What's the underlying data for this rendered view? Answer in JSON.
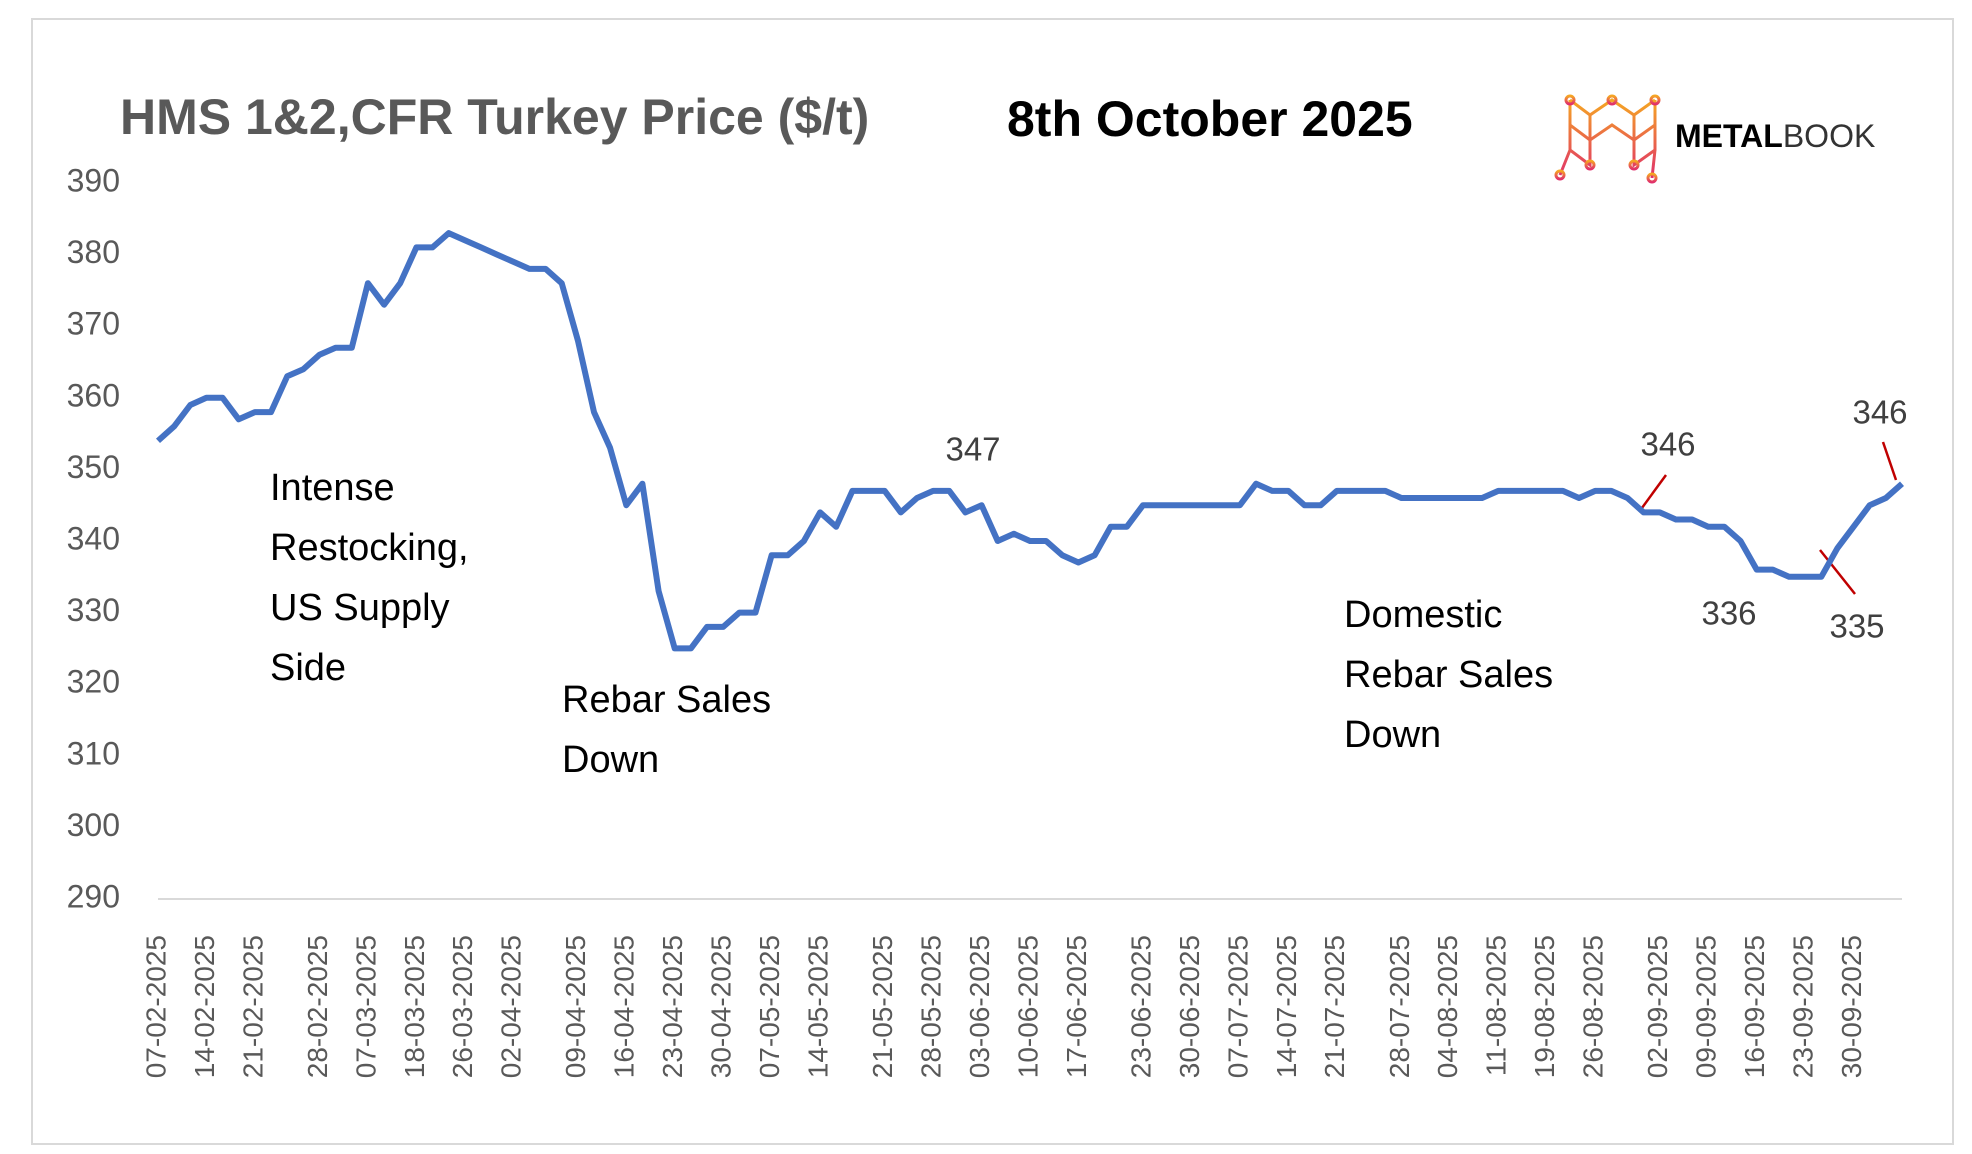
{
  "chart_data": {
    "type": "line",
    "title": "HMS 1&2,CFR Turkey Price ($/t)",
    "subtitle": "8th October 2025",
    "logo_bold": "METAL",
    "logo_light": "BOOK",
    "annotations": [
      [
        "Intense",
        "Restocking,",
        "US Supply",
        "Side"
      ],
      [
        "Rebar Sales",
        "Down"
      ],
      [
        "Domestic",
        "Rebar Sales",
        "Down"
      ]
    ],
    "categories": [
      "07-02-2025",
      null,
      null,
      "14-02-2025",
      null,
      null,
      "21-02-2025",
      null,
      null,
      null,
      "28-02-2025",
      null,
      null,
      "07-03-2025",
      null,
      null,
      "18-03-2025",
      null,
      null,
      "26-03-2025",
      null,
      null,
      "02-04-2025",
      null,
      null,
      null,
      "09-04-2025",
      null,
      null,
      "16-04-2025",
      null,
      null,
      "23-04-2025",
      null,
      null,
      "30-04-2025",
      null,
      null,
      "07-05-2025",
      null,
      null,
      "14-05-2025",
      null,
      null,
      null,
      "21-05-2025",
      null,
      null,
      "28-05-2025",
      null,
      null,
      "03-06-2025",
      null,
      null,
      "10-06-2025",
      null,
      null,
      "17-06-2025",
      null,
      null,
      null,
      "23-06-2025",
      null,
      null,
      "30-06-2025",
      null,
      null,
      "07-07-2025",
      null,
      null,
      "14-07-2025",
      null,
      null,
      "21-07-2025",
      null,
      null,
      null,
      "28-07-2025",
      null,
      null,
      "04-08-2025",
      null,
      null,
      "11-08-2025",
      null,
      null,
      "19-08-2025",
      null,
      null,
      "26-08-2025",
      null,
      null,
      null,
      "02-09-2025",
      null,
      null,
      "09-09-2025",
      null,
      null,
      "16-09-2025",
      null,
      null,
      "23-09-2025",
      null,
      null,
      "30-09-2025",
      null,
      null,
      null
    ],
    "series": [
      {
        "name": "HMS 1&2 CFR Turkey",
        "color": "#4472c4",
        "values": [
          354,
          356,
          359,
          360,
          360,
          357,
          358,
          358,
          363,
          364,
          366,
          367,
          367,
          376,
          373,
          376,
          381,
          381,
          383,
          382,
          381,
          380,
          379,
          378,
          378,
          376,
          368,
          358,
          353,
          345,
          348,
          333,
          325,
          325,
          328,
          328,
          330,
          330,
          338,
          338,
          340,
          344,
          342,
          347,
          347,
          347,
          344,
          346,
          347,
          347,
          344,
          345,
          340,
          341,
          340,
          340,
          338,
          337,
          338,
          342,
          342,
          345,
          345,
          345,
          345,
          345,
          345,
          345,
          348,
          347,
          347,
          345,
          345,
          347,
          347,
          347,
          347,
          346,
          346,
          346,
          346,
          346,
          346,
          347,
          347,
          347,
          347,
          347,
          346,
          347,
          347,
          346,
          344,
          344,
          343,
          343,
          342,
          342,
          340,
          336,
          336,
          335,
          335,
          335,
          339,
          342,
          345,
          346,
          348
        ]
      }
    ],
    "ylim": [
      290,
      390
    ],
    "yticks": [
      290,
      300,
      310,
      320,
      330,
      340,
      350,
      360,
      370,
      380,
      390
    ]
  }
}
